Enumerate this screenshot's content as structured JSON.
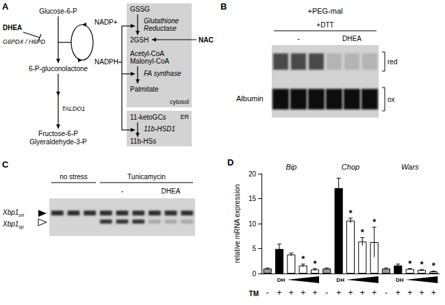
{
  "panels": {
    "A": {
      "letter": "A",
      "nodes": {
        "dhea": "DHEA",
        "enzyme": "G6PDX / H6PD",
        "glucose": "Glucose-6-P",
        "nadp": "NADP+",
        "nadph": "NADPH",
        "gluconolactone": "6-P-gluconolactone",
        "taldo": "TALDO1",
        "fructose": "Fructose-6-P",
        "glyceraldehyde": "Glyeraldehyde-3-P",
        "gssg": "GSSG",
        "gr": [
          "Glutathione",
          "Reductase"
        ],
        "gsh": "2GSH",
        "nac": "NAC",
        "acetyl": "Acetyl-CoA",
        "malonyl": "Malonyl-CoA",
        "fas": "FA synthase",
        "palmitate": "Palmitate",
        "cytosol": "cytosol",
        "er": "ER",
        "keto": "11-ketoGCs",
        "hsd": "11b-HSD1",
        "hs": "11b-HSs"
      }
    },
    "B": {
      "letter": "B",
      "title": "+PEG-mal",
      "treatment": "+DTT",
      "lanes": [
        "-",
        "DHEA"
      ],
      "bands": [
        "red",
        "ox"
      ],
      "protein": "Albumin"
    },
    "C": {
      "letter": "C",
      "conditions": [
        "no stress",
        "Tunicamycin"
      ],
      "lanes": [
        "-",
        "DHEA"
      ],
      "bands": [
        {
          "text": "Xbp1",
          "sub": "un"
        },
        {
          "text": "Xbp1",
          "sub": "sp"
        }
      ]
    }
  },
  "chart_data": {
    "type": "bar",
    "letter": "D",
    "ylabel": "relative mRNA expression",
    "xlabel": "TM",
    "groups": [
      "Bip",
      "Chop",
      "Wars"
    ],
    "categories": [
      "-",
      "+",
      "+",
      "+",
      "+",
      "-",
      "+",
      "+",
      "+",
      "+",
      "-",
      "+",
      "+",
      "+",
      "+"
    ],
    "values": [
      1,
      4.9,
      3.8,
      1.6,
      0.8,
      1,
      17.1,
      10.6,
      6.4,
      6.3,
      1,
      1.6,
      0.9,
      0.7,
      0.4
    ],
    "errors": [
      0.1,
      1.0,
      0.3,
      0.3,
      0.2,
      0.1,
      2.0,
      0.5,
      0.8,
      3.0,
      0.1,
      0.3,
      0.1,
      0.1,
      0.1
    ],
    "colors": [
      "#9a9a9a",
      "#000000",
      "#ffffff",
      "#ffffff",
      "#ffffff",
      "#9a9a9a",
      "#000000",
      "#ffffff",
      "#ffffff",
      "#ffffff",
      "#9a9a9a",
      "#000000",
      "#ffffff",
      "#ffffff",
      "#ffffff"
    ],
    "annotations": [
      {
        "index": 3,
        "text": "*"
      },
      {
        "index": 4,
        "text": "*"
      },
      {
        "index": 7,
        "text": "*"
      },
      {
        "index": 8,
        "text": "*"
      },
      {
        "index": 9,
        "text": "*"
      },
      {
        "index": 12,
        "text": "*"
      },
      {
        "index": 13,
        "text": "*"
      },
      {
        "index": 14,
        "text": "*"
      }
    ],
    "ramp": {
      "label": "DH",
      "from": 2,
      "to": 4
    },
    "ylim": [
      0,
      20
    ],
    "yticks": [
      0,
      5,
      10,
      15,
      20
    ],
    "grid": false
  }
}
